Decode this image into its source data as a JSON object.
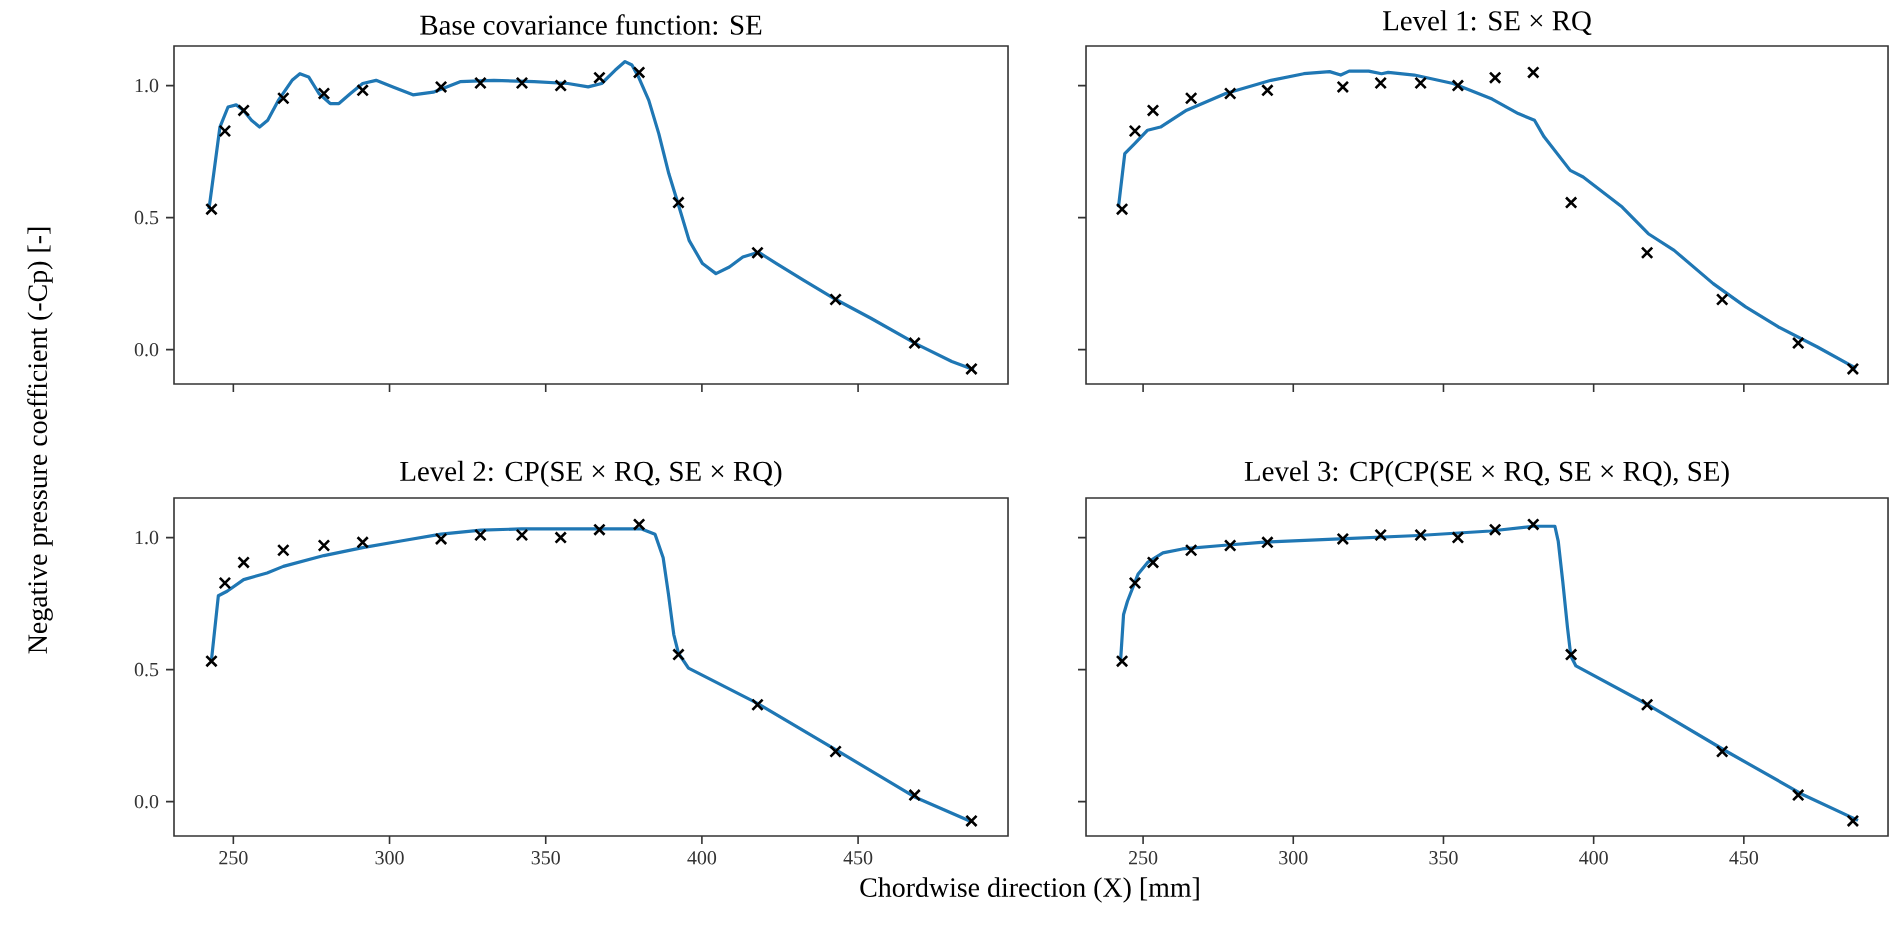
{
  "chart_data": [
    {
      "type": "line",
      "title": "Base covariance function: SE",
      "ylabel": "Negative pressure coefficient (-Cp) [-]",
      "xlim": [
        231,
        498
      ],
      "ylim": [
        -0.13,
        1.15
      ],
      "xticks": [
        {
          "value": 250,
          "label": null
        },
        {
          "value": 300,
          "label": null
        },
        {
          "value": 350,
          "label": null
        },
        {
          "value": 400,
          "label": null
        },
        {
          "value": 450,
          "label": null
        }
      ],
      "yticks": [
        {
          "value": 0,
          "label": "0.0"
        },
        {
          "value": 0.5,
          "label": "0.5"
        },
        {
          "value": 1,
          "label": "1.0"
        }
      ],
      "tick_labels": "y",
      "series": [
        {
          "type": "line",
          "color": "#1f77b4",
          "line_style": "solid",
          "x": [
            242.2,
            244.0,
            245.7,
            248.3,
            250.9,
            253.2,
            255.8,
            258.4,
            261.0,
            264.4,
            268.8,
            271.3,
            274.1,
            277.4,
            281.0,
            283.8,
            287.5,
            291.4,
            295.7,
            301.1,
            307.5,
            314.0,
            322.6,
            333.4,
            346.3,
            357.1,
            363.6,
            367.9,
            372.2,
            375.4,
            377.6,
            379.7,
            383.0,
            386.2,
            389.4,
            392.7,
            395.9,
            400.2,
            404.5,
            408.8,
            413.1,
            418.1,
            423.9,
            432.5,
            443.3,
            454.1,
            469.2,
            480.0,
            487.1
          ],
          "values": [
            0.533,
            0.692,
            0.843,
            0.919,
            0.927,
            0.907,
            0.869,
            0.843,
            0.869,
            0.944,
            1.02,
            1.045,
            1.033,
            0.97,
            0.932,
            0.932,
            0.97,
            1.008,
            1.02,
            0.995,
            0.965,
            0.975,
            1.015,
            1.02,
            1.015,
            1.008,
            0.995,
            1.008,
            1.058,
            1.091,
            1.078,
            1.033,
            0.944,
            0.818,
            0.667,
            0.54,
            0.414,
            0.326,
            0.288,
            0.313,
            0.351,
            0.369,
            0.326,
            0.263,
            0.187,
            0.119,
            0.018,
            -0.045,
            -0.076
          ]
        },
        {
          "type": "scatter",
          "color": "#000000",
          "marker": "cross",
          "x": [
            243.0,
            247.3,
            253.3,
            266.0,
            279.0,
            291.4,
            316.5,
            329.1,
            342.4,
            354.8,
            367.2,
            379.9,
            392.5,
            417.8,
            442.8,
            468.1,
            486.3
          ],
          "values": [
            0.532,
            0.828,
            0.906,
            0.952,
            0.97,
            0.982,
            0.995,
            1.01,
            1.01,
            1.0,
            1.03,
            1.05,
            0.557,
            0.367,
            0.19,
            0.025,
            -0.073
          ]
        }
      ]
    },
    {
      "type": "line",
      "title": "Level 1: SE × RQ",
      "xlim": [
        231,
        498
      ],
      "ylim": [
        -0.13,
        1.15
      ],
      "xticks": [
        {
          "value": 250,
          "label": null
        },
        {
          "value": 300,
          "label": null
        },
        {
          "value": 350,
          "label": null
        },
        {
          "value": 400,
          "label": null
        },
        {
          "value": 450,
          "label": null
        }
      ],
      "yticks": [
        {
          "value": 0,
          "label": null
        },
        {
          "value": 0.5,
          "label": null
        },
        {
          "value": 1,
          "label": null
        }
      ],
      "tick_labels": false,
      "series": [
        {
          "type": "line",
          "color": "#1f77b4",
          "line_style": "solid",
          "x": [
            241.8,
            243.9,
            247.2,
            251.5,
            255.8,
            264.5,
            277.5,
            292.6,
            303.5,
            312.1,
            315.8,
            318.6,
            325.1,
            329.4,
            331.6,
            340.3,
            353.2,
            366.2,
            374.9,
            380.3,
            383.5,
            392.2,
            396.5,
            409.5,
            418.2,
            426.8,
            439.8,
            450.6,
            461.5,
            474.5,
            487.4
          ],
          "values": [
            0.54,
            0.742,
            0.78,
            0.831,
            0.843,
            0.907,
            0.97,
            1.02,
            1.045,
            1.053,
            1.04,
            1.055,
            1.055,
            1.045,
            1.05,
            1.04,
            1.008,
            0.949,
            0.894,
            0.869,
            0.806,
            0.679,
            0.654,
            0.54,
            0.439,
            0.376,
            0.25,
            0.162,
            0.086,
            0.01,
            -0.071
          ]
        },
        {
          "type": "scatter",
          "color": "#000000",
          "marker": "cross",
          "x": [
            243.0,
            247.3,
            253.3,
            266.0,
            279.0,
            291.4,
            316.5,
            329.1,
            342.4,
            354.8,
            367.2,
            379.9,
            392.5,
            417.8,
            442.8,
            468.1,
            486.3
          ],
          "values": [
            0.532,
            0.828,
            0.906,
            0.952,
            0.97,
            0.982,
            0.995,
            1.01,
            1.01,
            1.0,
            1.03,
            1.05,
            0.557,
            0.367,
            0.19,
            0.025,
            -0.073
          ]
        }
      ]
    },
    {
      "type": "line",
      "title": "Level 2: CP(SE × RQ, SE × RQ)",
      "xlabel": "Chordwise direction (X) [mm]",
      "xlim": [
        231,
        498
      ],
      "ylim": [
        -0.13,
        1.15
      ],
      "xticks": [
        250,
        300,
        350,
        400,
        450
      ],
      "yticks": [
        {
          "value": 0,
          "label": "0.0"
        },
        {
          "value": 0.5,
          "label": "0.5"
        },
        {
          "value": 1,
          "label": "1.0"
        }
      ],
      "series": [
        {
          "type": "line",
          "color": "#1f77b4",
          "line_style": "solid",
          "x": [
            243.0,
            245.2,
            248.0,
            253.3,
            260.8,
            266.0,
            279.0,
            291.4,
            303.6,
            316.5,
            329.3,
            342.2,
            355.0,
            367.9,
            380.7,
            385.0,
            387.6,
            389.3,
            391.0,
            392.5,
            395.7,
            417.8,
            442.8,
            468.1,
            486.3
          ],
          "values": [
            0.537,
            0.78,
            0.797,
            0.841,
            0.866,
            0.891,
            0.932,
            0.962,
            0.987,
            1.013,
            1.028,
            1.033,
            1.033,
            1.033,
            1.033,
            1.013,
            0.924,
            0.785,
            0.633,
            0.562,
            0.506,
            0.372,
            0.197,
            0.018,
            -0.076
          ]
        },
        {
          "type": "scatter",
          "color": "#000000",
          "marker": "cross",
          "x": [
            243.0,
            247.3,
            253.3,
            266.0,
            279.0,
            291.4,
            316.5,
            329.1,
            342.4,
            354.8,
            367.2,
            379.9,
            392.5,
            417.8,
            442.8,
            468.1,
            486.3
          ],
          "values": [
            0.532,
            0.828,
            0.906,
            0.952,
            0.97,
            0.982,
            0.995,
            1.01,
            1.01,
            1.0,
            1.03,
            1.05,
            0.557,
            0.367,
            0.19,
            0.025,
            -0.073
          ]
        }
      ]
    },
    {
      "type": "line",
      "title": "Level 3: CP(CP(SE × RQ, SE × RQ), SE)",
      "xlim": [
        231,
        498
      ],
      "ylim": [
        -0.13,
        1.15
      ],
      "xticks": [
        250,
        300,
        350,
        400,
        450
      ],
      "yticks": [
        {
          "value": 0,
          "label": null
        },
        {
          "value": 0.5,
          "label": null
        },
        {
          "value": 1,
          "label": null
        }
      ],
      "tick_labels": "x",
      "series": [
        {
          "type": "line",
          "color": "#1f77b4",
          "line_style": "solid",
          "x": [
            242.5,
            243.5,
            244.8,
            248.3,
            251.5,
            256.6,
            263.1,
            276.2,
            289.3,
            315.5,
            341.7,
            365.7,
            379.9,
            387.1,
            388.2,
            389.7,
            391.3,
            392.4,
            394.1,
            418.1,
            444.3,
            469.9,
            488.0
          ],
          "values": [
            0.532,
            0.709,
            0.759,
            0.861,
            0.906,
            0.942,
            0.957,
            0.97,
            0.982,
            0.995,
            1.008,
            1.025,
            1.043,
            1.043,
            0.987,
            0.835,
            0.658,
            0.552,
            0.514,
            0.367,
            0.19,
            0.025,
            -0.071
          ]
        },
        {
          "type": "scatter",
          "color": "#000000",
          "marker": "cross",
          "x": [
            243.0,
            247.3,
            253.3,
            266.0,
            279.0,
            291.4,
            316.5,
            329.1,
            342.4,
            354.8,
            367.2,
            379.9,
            392.5,
            417.8,
            442.8,
            468.1,
            486.3
          ],
          "values": [
            0.532,
            0.828,
            0.906,
            0.952,
            0.97,
            0.982,
            0.995,
            1.01,
            1.01,
            1.0,
            1.03,
            1.05,
            0.557,
            0.367,
            0.19,
            0.025,
            -0.073
          ]
        }
      ]
    }
  ]
}
